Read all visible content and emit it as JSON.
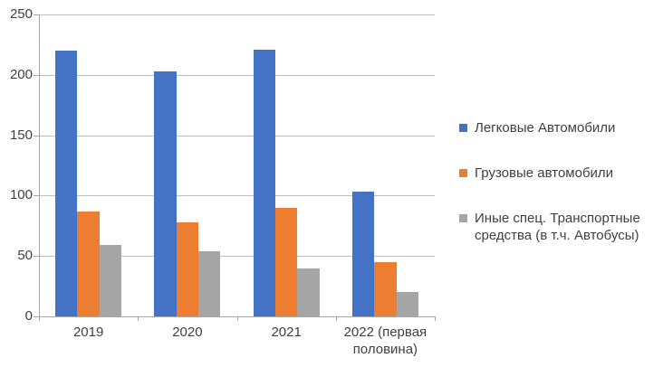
{
  "chart_data": {
    "type": "bar",
    "title": "",
    "xlabel": "",
    "ylabel": "",
    "categories": [
      "2019",
      "2020",
      "2021",
      "2022 (первая половина)"
    ],
    "series": [
      {
        "name": "Легковые Автомобили",
        "color": "#4472C4",
        "values": [
          220,
          203,
          221,
          103
        ]
      },
      {
        "name": "Грузовые автомобили",
        "color": "#ED7D31",
        "values": [
          87,
          78,
          90,
          45
        ]
      },
      {
        "name": "Иные спец. Транспортные средства (в т.ч. Автобусы)",
        "color": "#A5A5A5",
        "values": [
          59,
          54,
          40,
          20
        ]
      }
    ],
    "ylim": [
      0,
      250
    ],
    "yticks": [
      0,
      50,
      100,
      150,
      200,
      250
    ],
    "grid": true,
    "legend_position": "right"
  },
  "colors": {
    "background": "#FFFFFF",
    "gridline": "#BFBFBF",
    "axis": "#A6A6A6",
    "text": "#404040"
  }
}
